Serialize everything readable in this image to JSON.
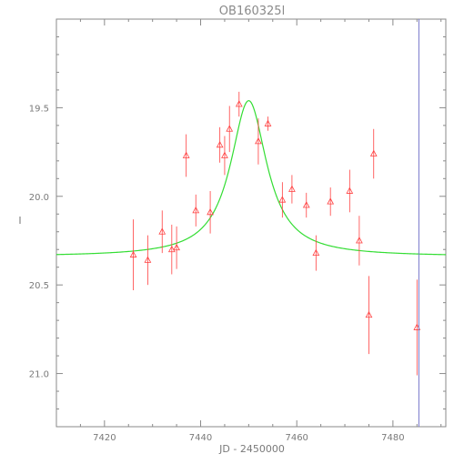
{
  "chart_data": {
    "type": "scatter",
    "title": "OB160325l",
    "xlabel": "JD - 2450000",
    "ylabel": "I",
    "xlim": [
      7410,
      7491
    ],
    "ylim": [
      21.3,
      19.0
    ],
    "y_inverted": true,
    "xticks": [
      "7420",
      "7440",
      "7460",
      "7480"
    ],
    "yticks": [
      "19.5",
      "20.0",
      "20.5",
      "21.0"
    ],
    "series": [
      {
        "type": "errorbar-scatter",
        "marker": "triangle",
        "color": "#ff4040",
        "points": [
          {
            "x": 7426.0,
            "y": 20.33,
            "err": 0.2
          },
          {
            "x": 7429.0,
            "y": 20.36,
            "err": 0.14
          },
          {
            "x": 7432.0,
            "y": 20.2,
            "err": 0.12
          },
          {
            "x": 7434.0,
            "y": 20.3,
            "err": 0.14
          },
          {
            "x": 7435.0,
            "y": 20.29,
            "err": 0.12
          },
          {
            "x": 7437.0,
            "y": 19.77,
            "err": 0.12
          },
          {
            "x": 7439.0,
            "y": 20.08,
            "err": 0.09
          },
          {
            "x": 7442.0,
            "y": 20.09,
            "err": 0.12
          },
          {
            "x": 7444.0,
            "y": 19.71,
            "err": 0.1
          },
          {
            "x": 7445.0,
            "y": 19.77,
            "err": 0.11
          },
          {
            "x": 7446.0,
            "y": 19.62,
            "err": 0.13
          },
          {
            "x": 7448.0,
            "y": 19.48,
            "err": 0.07
          },
          {
            "x": 7452.0,
            "y": 19.69,
            "err": 0.13
          },
          {
            "x": 7454.0,
            "y": 19.59,
            "err": 0.04
          },
          {
            "x": 7457.0,
            "y": 20.02,
            "err": 0.1
          },
          {
            "x": 7459.0,
            "y": 19.96,
            "err": 0.08
          },
          {
            "x": 7462.0,
            "y": 20.05,
            "err": 0.07
          },
          {
            "x": 7464.0,
            "y": 20.32,
            "err": 0.1
          },
          {
            "x": 7467.0,
            "y": 20.03,
            "err": 0.08
          },
          {
            "x": 7471.0,
            "y": 19.97,
            "err": 0.12
          },
          {
            "x": 7473.0,
            "y": 20.25,
            "err": 0.14
          },
          {
            "x": 7475.0,
            "y": 20.67,
            "err": 0.22
          },
          {
            "x": 7476.0,
            "y": 19.76,
            "err": 0.14
          },
          {
            "x": 7485.0,
            "y": 20.74,
            "err": 0.27
          }
        ]
      },
      {
        "type": "line",
        "color": "#33dd33",
        "model": {
          "t0": 7450.0,
          "width": 4.6,
          "baseline": 20.34,
          "peak": 19.46
        }
      }
    ],
    "vline": {
      "x": 7485.4,
      "color": "#7777cc"
    },
    "grid": false
  }
}
